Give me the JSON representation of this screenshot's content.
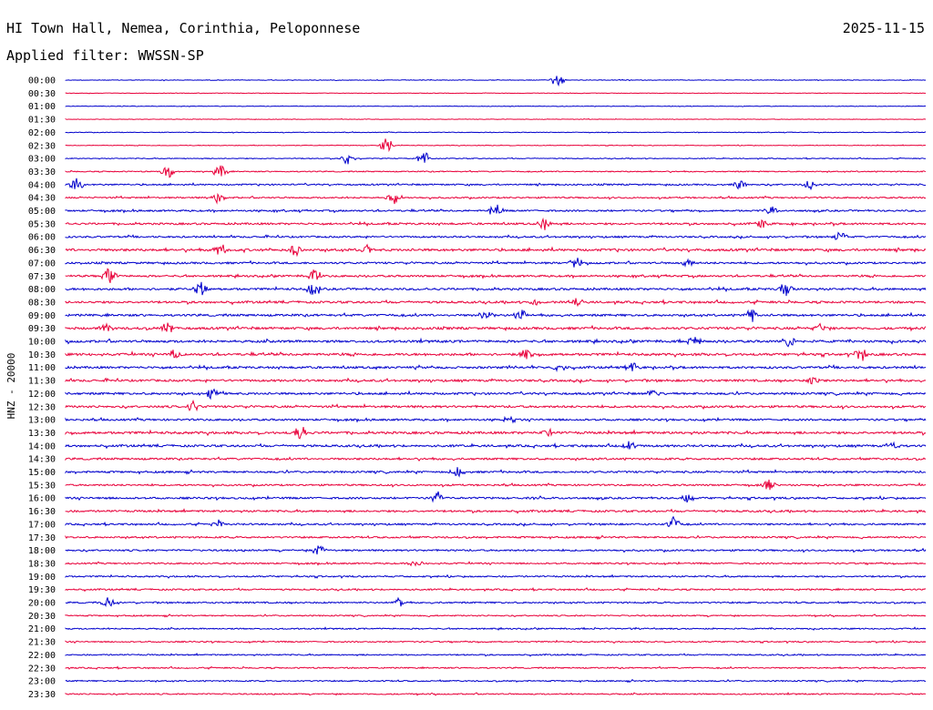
{
  "header": {
    "station": "HI Town Hall, Nemea, Corinthia, Peloponnese",
    "date": "2025-11-15",
    "filter": "Applied filter: WWSSN-SP"
  },
  "chart_data": {
    "type": "line",
    "title": "HI Town Hall, Nemea, Corinthia, Peloponnese",
    "ylabel": "HNZ - 20000",
    "colors": [
      "#0000cc",
      "#e8003a"
    ],
    "rows": [
      {
        "label": "00:00",
        "level": 0.15,
        "events": [
          [
            540,
            0.9
          ]
        ]
      },
      {
        "label": "00:30",
        "level": 0.12,
        "events": []
      },
      {
        "label": "01:00",
        "level": 0.12,
        "events": []
      },
      {
        "label": "01:30",
        "level": 0.12,
        "events": []
      },
      {
        "label": "02:00",
        "level": 0.15,
        "events": []
      },
      {
        "label": "02:30",
        "level": 0.15,
        "events": [
          [
            352,
            1.0
          ]
        ]
      },
      {
        "label": "03:00",
        "level": 0.2,
        "events": [
          [
            310,
            0.9
          ],
          [
            393,
            1.0
          ]
        ]
      },
      {
        "label": "03:30",
        "level": 0.25,
        "events": [
          [
            112,
            0.9
          ],
          [
            170,
            0.9
          ]
        ]
      },
      {
        "label": "04:00",
        "level": 0.35,
        "events": [
          [
            12,
            1.0
          ],
          [
            740,
            0.6
          ],
          [
            817,
            0.7
          ]
        ]
      },
      {
        "label": "04:30",
        "level": 0.35,
        "events": [
          [
            168,
            0.6
          ],
          [
            360,
            0.8
          ]
        ]
      },
      {
        "label": "05:00",
        "level": 0.4,
        "events": [
          [
            472,
            0.9
          ],
          [
            775,
            0.7
          ]
        ]
      },
      {
        "label": "05:30",
        "level": 0.45,
        "events": [
          [
            525,
            0.9
          ],
          [
            765,
            0.6
          ]
        ]
      },
      {
        "label": "06:00",
        "level": 0.4,
        "events": [
          [
            850,
            0.9
          ]
        ]
      },
      {
        "label": "06:30",
        "level": 0.55,
        "events": [
          [
            170,
            0.8
          ],
          [
            252,
            0.8
          ],
          [
            330,
            0.7
          ]
        ]
      },
      {
        "label": "07:00",
        "level": 0.45,
        "events": [
          [
            560,
            0.9
          ],
          [
            682,
            0.6
          ]
        ]
      },
      {
        "label": "07:30",
        "level": 0.45,
        "events": [
          [
            48,
            1.0
          ],
          [
            273,
            1.0
          ]
        ]
      },
      {
        "label": "08:00",
        "level": 0.5,
        "events": [
          [
            148,
            0.9
          ],
          [
            272,
            0.9
          ],
          [
            790,
            1.0
          ]
        ]
      },
      {
        "label": "08:30",
        "level": 0.5,
        "events": [
          [
            515,
            0.6
          ],
          [
            560,
            0.6
          ]
        ]
      },
      {
        "label": "09:00",
        "level": 0.5,
        "events": [
          [
            462,
            0.9
          ],
          [
            498,
            1.0
          ],
          [
            752,
            0.9
          ]
        ]
      },
      {
        "label": "09:30",
        "level": 0.55,
        "events": [
          [
            44,
            0.6
          ],
          [
            112,
            0.8
          ],
          [
            828,
            0.6
          ]
        ]
      },
      {
        "label": "10:00",
        "level": 0.55,
        "events": [
          [
            690,
            0.7
          ],
          [
            794,
            0.9
          ]
        ]
      },
      {
        "label": "10:30",
        "level": 0.55,
        "events": [
          [
            120,
            0.6
          ],
          [
            505,
            0.8
          ],
          [
            873,
            0.9
          ]
        ]
      },
      {
        "label": "11:00",
        "level": 0.5,
        "events": [
          [
            542,
            0.7
          ],
          [
            622,
            0.8
          ]
        ]
      },
      {
        "label": "11:30",
        "level": 0.5,
        "events": [
          [
            820,
            0.7
          ]
        ]
      },
      {
        "label": "12:00",
        "level": 0.5,
        "events": [
          [
            162,
            0.8
          ],
          [
            645,
            0.6
          ]
        ]
      },
      {
        "label": "12:30",
        "level": 0.5,
        "events": [
          [
            140,
            0.7
          ]
        ]
      },
      {
        "label": "13:00",
        "level": 0.45,
        "events": [
          [
            488,
            0.6
          ]
        ]
      },
      {
        "label": "13:30",
        "level": 0.55,
        "events": [
          [
            258,
            0.9
          ],
          [
            528,
            0.6
          ]
        ]
      },
      {
        "label": "14:00",
        "level": 0.5,
        "events": [
          [
            620,
            0.6
          ],
          [
            908,
            0.6
          ]
        ]
      },
      {
        "label": "14:30",
        "level": 0.45,
        "events": []
      },
      {
        "label": "15:00",
        "level": 0.45,
        "events": [
          [
            430,
            0.6
          ]
        ]
      },
      {
        "label": "15:30",
        "level": 0.4,
        "events": [
          [
            772,
            0.8
          ]
        ]
      },
      {
        "label": "16:00",
        "level": 0.45,
        "events": [
          [
            408,
            0.9
          ],
          [
            682,
            0.6
          ]
        ]
      },
      {
        "label": "16:30",
        "level": 0.45,
        "events": []
      },
      {
        "label": "17:00",
        "level": 0.4,
        "events": [
          [
            168,
            0.6
          ],
          [
            668,
            1.0
          ]
        ]
      },
      {
        "label": "17:30",
        "level": 0.4,
        "events": []
      },
      {
        "label": "18:00",
        "level": 0.4,
        "events": [
          [
            278,
            0.9
          ]
        ]
      },
      {
        "label": "18:30",
        "level": 0.35,
        "events": [
          [
            385,
            0.5
          ]
        ]
      },
      {
        "label": "19:00",
        "level": 0.35,
        "events": []
      },
      {
        "label": "19:30",
        "level": 0.35,
        "events": []
      },
      {
        "label": "20:00",
        "level": 0.35,
        "events": [
          [
            47,
            0.7
          ],
          [
            366,
            0.7
          ]
        ]
      },
      {
        "label": "20:30",
        "level": 0.3,
        "events": []
      },
      {
        "label": "21:00",
        "level": 0.3,
        "events": []
      },
      {
        "label": "21:30",
        "level": 0.3,
        "events": []
      },
      {
        "label": "22:00",
        "level": 0.3,
        "events": []
      },
      {
        "label": "22:30",
        "level": 0.3,
        "events": []
      },
      {
        "label": "23:00",
        "level": 0.3,
        "events": []
      },
      {
        "label": "23:30",
        "level": 0.3,
        "events": []
      }
    ]
  }
}
